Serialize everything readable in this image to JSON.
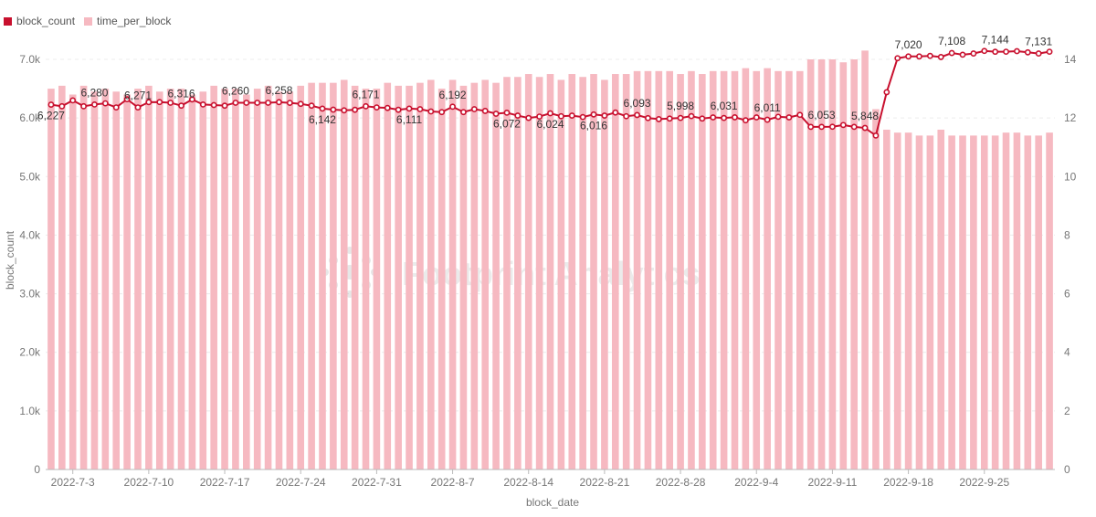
{
  "chart_data": {
    "type": "bar+line",
    "title": "",
    "xlabel": "block_date",
    "ylabel_left": "block_count",
    "ylabel_right": "",
    "ylim_left": [
      0,
      7000
    ],
    "ylim_right": [
      0,
      14
    ],
    "yticks_left": [
      "0",
      "1.0k",
      "2.0k",
      "3.0k",
      "4.0k",
      "5.0k",
      "6.0k",
      "7.0k"
    ],
    "yticks_right": [
      "0",
      "2",
      "4",
      "6",
      "8",
      "10",
      "12",
      "14"
    ],
    "x_tick_labels": [
      "2022-7-3",
      "2022-7-10",
      "2022-7-17",
      "2022-7-24",
      "2022-7-31",
      "2022-8-7",
      "2022-8-14",
      "2022-8-21",
      "2022-8-28",
      "2022-9-4",
      "2022-9-11",
      "2022-9-18",
      "2022-9-25"
    ],
    "x_tick_indices": [
      2,
      9,
      16,
      23,
      30,
      37,
      44,
      51,
      58,
      65,
      72,
      79,
      86
    ],
    "watermark": "Footprint Analytics",
    "legend_position": "top-left",
    "series": [
      {
        "name": "block_count",
        "type": "line",
        "axis": "left",
        "color": "#c8102e",
        "values": [
          6227,
          6200,
          6300,
          6200,
          6230,
          6250,
          6180,
          6320,
          6180,
          6270,
          6271,
          6260,
          6210,
          6316,
          6230,
          6220,
          6210,
          6260,
          6260,
          6260,
          6260,
          6270,
          6258,
          6240,
          6210,
          6160,
          6142,
          6130,
          6140,
          6200,
          6180,
          6171,
          6140,
          6160,
          6150,
          6111,
          6100,
          6192,
          6100,
          6150,
          6120,
          6072,
          6090,
          6040,
          6000,
          6024,
          6080,
          6030,
          6040,
          6016,
          6060,
          6040,
          6093,
          6030,
          6050,
          5998,
          5980,
          5990,
          6000,
          6031,
          5990,
          6010,
          6000,
          6011,
          5960,
          6010,
          5970,
          6020,
          6010,
          6053,
          5848,
          5848,
          5850,
          5880,
          5848,
          5830,
          5700,
          6440,
          7020,
          7050,
          7050,
          7060,
          7040,
          7108,
          7080,
          7100,
          7144,
          7130,
          7131,
          7140,
          7120,
          7100,
          7131
        ]
      },
      {
        "name": "time_per_block",
        "type": "bar",
        "axis": "right",
        "color": "#f6b9c1",
        "values": [
          13.0,
          13.1,
          12.8,
          13.1,
          12.9,
          13.0,
          12.9,
          12.8,
          13.0,
          13.1,
          12.9,
          13.0,
          13.0,
          12.8,
          12.9,
          13.1,
          13.0,
          13.0,
          12.8,
          13.0,
          13.1,
          12.9,
          12.9,
          13.1,
          13.2,
          13.2,
          13.2,
          13.3,
          13.1,
          13.0,
          13.0,
          13.2,
          13.1,
          13.1,
          13.2,
          13.3,
          13.0,
          13.3,
          13.1,
          13.2,
          13.3,
          13.2,
          13.4,
          13.4,
          13.5,
          13.4,
          13.5,
          13.3,
          13.5,
          13.4,
          13.5,
          13.3,
          13.5,
          13.5,
          13.6,
          13.6,
          13.6,
          13.6,
          13.5,
          13.6,
          13.5,
          13.6,
          13.6,
          13.6,
          13.7,
          13.6,
          13.7,
          13.6,
          13.6,
          13.6,
          14.0,
          14.0,
          14.0,
          13.9,
          14.0,
          14.3,
          12.3,
          11.6,
          11.5,
          11.5,
          11.4,
          11.4,
          11.6,
          11.4,
          11.4,
          11.4,
          11.4,
          11.4,
          11.5,
          11.5,
          11.4,
          11.4,
          11.5
        ]
      }
    ],
    "data_labels": [
      {
        "index": 0,
        "text": "6,227",
        "pos": "below"
      },
      {
        "index": 6,
        "text": "6,280",
        "pos": "above"
      },
      {
        "index": 12,
        "text": "6,271",
        "pos": "above"
      },
      {
        "index": 18,
        "text": "6,316",
        "pos": "above"
      },
      {
        "index": 24,
        "text": "6,260",
        "pos": "above"
      },
      {
        "index": 30,
        "text": "6,258",
        "pos": "above"
      },
      {
        "index": 36,
        "text": "6,142",
        "pos": "below"
      },
      {
        "index": 42,
        "text": "6,171",
        "pos": "above"
      },
      {
        "index": 48,
        "text": "6,111",
        "pos": "below"
      },
      {
        "index": 54,
        "text": "6,192",
        "pos": "above"
      },
      {
        "index": 60,
        "text": "6,072",
        "pos": "below"
      },
      {
        "index": 66,
        "text": "6,024",
        "pos": "below"
      },
      {
        "index": 72,
        "text": "6,016",
        "pos": "below"
      },
      {
        "index": 78,
        "text": "6,093",
        "pos": "above"
      },
      {
        "index": 84,
        "text": "5,998",
        "pos": "above"
      },
      {
        "index": 90,
        "text": "6,031",
        "pos": "above"
      },
      {
        "index": 96,
        "text": "6,011",
        "pos": "above"
      },
      {
        "index": 102,
        "text": "6,053",
        "pos": "above"
      },
      {
        "index": 108,
        "text": "5,848",
        "pos": "above"
      },
      {
        "index": 114,
        "text": "7,020",
        "pos": "above"
      },
      {
        "index": 120,
        "text": "7,108",
        "pos": "above"
      },
      {
        "index": 126,
        "text": "7,144",
        "pos": "above"
      },
      {
        "index": 132,
        "text": "7,131",
        "pos": "above"
      }
    ]
  }
}
